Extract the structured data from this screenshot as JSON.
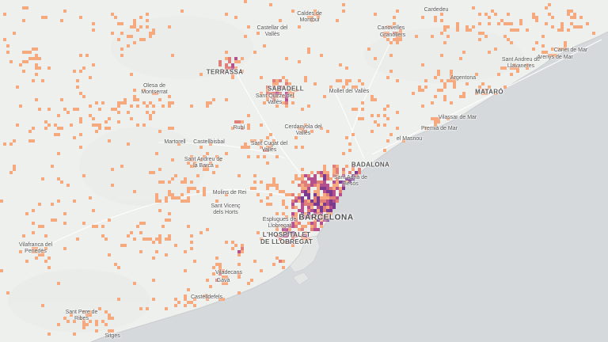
{
  "map": {
    "colors": {
      "land": "#eef0ee",
      "sea": "#d6d9dc",
      "low": "#f5a97f",
      "mid": "#e07e7a",
      "high": "#b5508f",
      "peak": "#7a3b8f"
    },
    "places": {
      "caldes": "Caldes de\nMontbui",
      "cardedeu": "Cardedeu",
      "castellar": "Castellar del\nVallès",
      "canovelles": "Canovelles",
      "granollers": "Granollers",
      "terrassa": "TERRASSA",
      "sabadell": "SABADELL",
      "olesa": "Olesa de\nMontserrat",
      "santquirze": "Sant Quirze del\nVallès",
      "mollet": "Mollet del Vallès",
      "canet": "Canet de Mar",
      "santandreullav": "Sant Andreu de\nLlavaneres",
      "arenys": "Arenys de Mar",
      "argentona": "Argentona",
      "mataro": "MATARÓ",
      "rubi": "Rubí",
      "cerdanyola": "Cerdanyola del\nVallès",
      "vilassar": "Vilassar de Mar",
      "premia": "Premià de Mar",
      "masnou": "el Masnou",
      "martorell": "Martorell",
      "castellbisbal": "Castellbisbal",
      "santcugat": "Sant Cugat del\nVallès",
      "badalona": "BADALONA",
      "santandreubarca": "Sant Andreu de\nla Barca",
      "santadria": "Sant Adrià de\nBesòs",
      "molins": "Molins de Rei",
      "santvicenc": "Sant Vicenç\ndels Horts",
      "barcelona": "BARCELONA",
      "esplugues": "Esplugues de\nLlobregat",
      "hospitalet": "L'HOSPITALET\nDE LLOBREGAT",
      "vilafranca": "Vilafranca del\nPenedès",
      "viladecans": "Viladecans",
      "gava": "Gavà",
      "castelldefels": "Castelldefels",
      "santpere": "Sant Pere de\nRibes",
      "sitges": "Sitges"
    }
  }
}
